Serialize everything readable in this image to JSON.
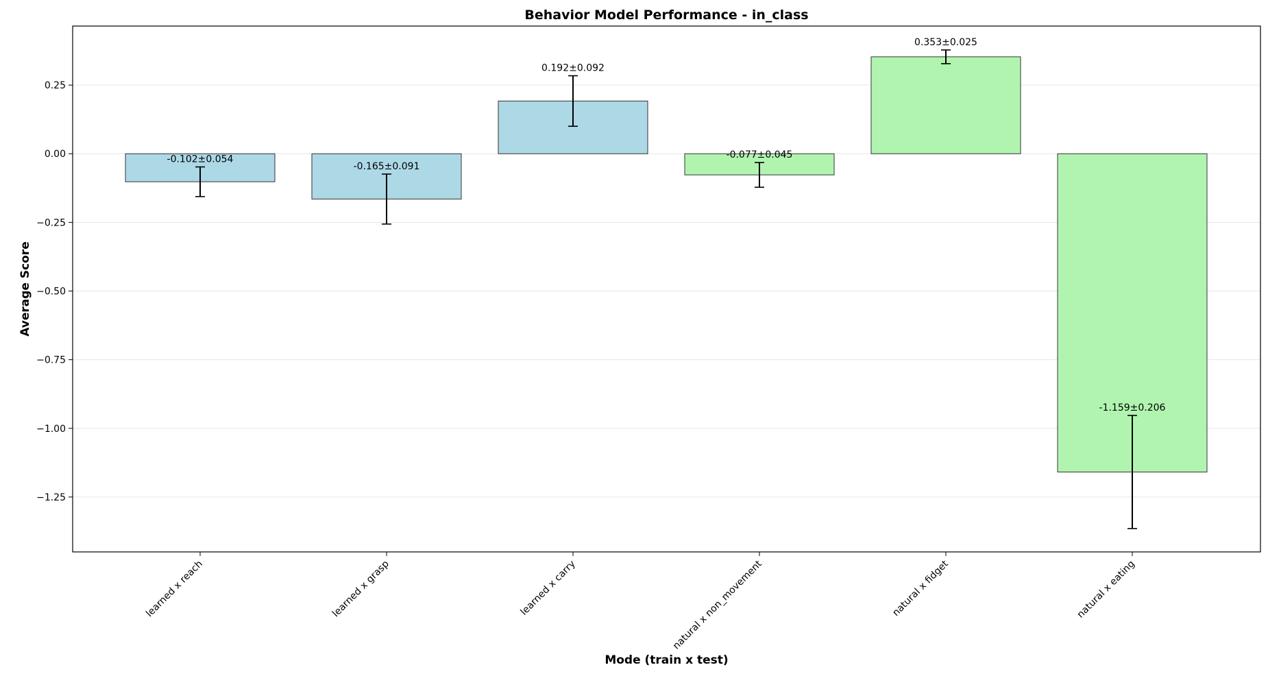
{
  "chart_data": {
    "type": "bar",
    "title": "Behavior Model Performance - in_class",
    "xlabel": "Mode (train x test)",
    "ylabel": "Average Score",
    "ylim": [
      -1.45,
      0.465
    ],
    "yticks": [
      0.25,
      0.0,
      -0.25,
      -0.5,
      -0.75,
      -1.0,
      -1.25
    ],
    "ytick_labels": [
      "0.25",
      "0.00",
      "−0.25",
      "−0.50",
      "−0.75",
      "−1.00",
      "−1.25"
    ],
    "grid": "y",
    "legend": "none",
    "categories": [
      "learned x reach",
      "learned x grasp",
      "learned x carry",
      "natural x non_movement",
      "natural x fidget",
      "natural x eating"
    ],
    "values": [
      -0.102,
      -0.165,
      0.192,
      -0.077,
      0.353,
      -1.159
    ],
    "errors": [
      0.054,
      0.091,
      0.092,
      0.045,
      0.025,
      0.206
    ],
    "data_labels": [
      "-0.102±0.054",
      "-0.165±0.091",
      "0.192±0.092",
      "-0.077±0.045",
      "0.353±0.025",
      "-1.159±0.206"
    ],
    "bar_colors": [
      "#add8e6",
      "#add8e6",
      "#add8e6",
      "#b0f4b0",
      "#b0f4b0",
      "#b0f4b0"
    ],
    "edge_color": "#333333",
    "grid_color": "#e6e6e6"
  }
}
